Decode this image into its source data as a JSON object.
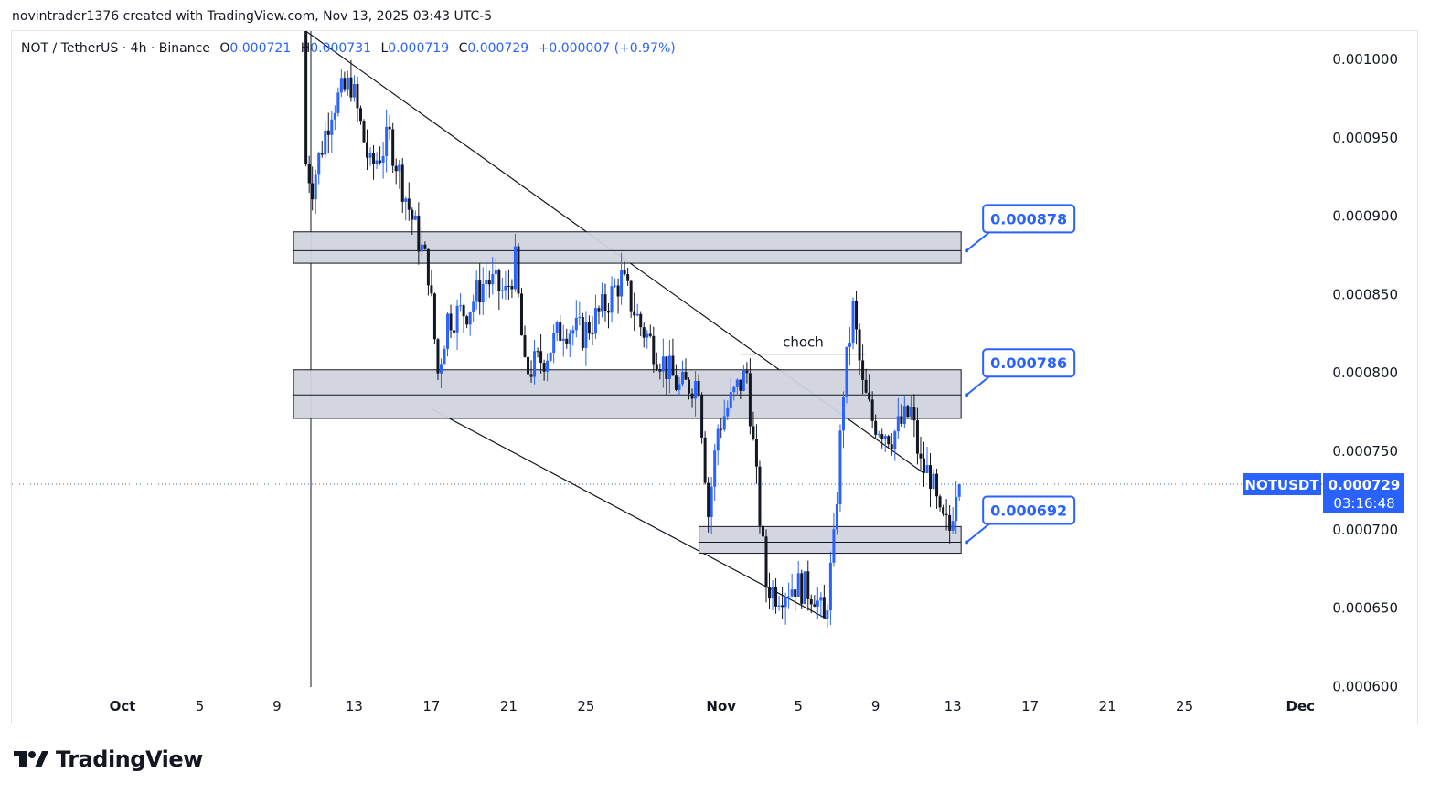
{
  "attribution": "novintrader1376 created with TradingView.com, Nov 13, 2025 03:43 UTC-5",
  "legend": {
    "symbol": "NOT / TetherUS · 4h · Binance",
    "open_key": "O",
    "open": "0.000721",
    "high_key": "H",
    "high": "0.000731",
    "low_key": "L",
    "low": "0.000719",
    "close_key": "C",
    "close": "0.000729",
    "change": "+0.000007 (+0.97%)"
  },
  "price_tag": {
    "symbol": "NOTUSDT",
    "price": "0.000729",
    "countdown": "03:16:48"
  },
  "brand": {
    "name": "TradingView"
  },
  "colors": {
    "up": "#2962ff",
    "down": "#131722",
    "zone_fill": "#d1d4dc",
    "zone_stroke": "#131722",
    "accent": "#2962ff",
    "trendline": "#131722",
    "current_price_line": "#2962ff"
  },
  "chart_data": {
    "type": "candlestick",
    "title": "NOT / TetherUS · 4h · Binance",
    "x_axis": {
      "type": "date",
      "ticks": [
        {
          "label": "Oct",
          "date": "2025-10-01"
        },
        {
          "label": "5",
          "date": "2025-10-05"
        },
        {
          "label": "9",
          "date": "2025-10-09"
        },
        {
          "label": "13",
          "date": "2025-10-13"
        },
        {
          "label": "17",
          "date": "2025-10-17"
        },
        {
          "label": "21",
          "date": "2025-10-21"
        },
        {
          "label": "25",
          "date": "2025-10-25"
        },
        {
          "label": "Nov",
          "date": "2025-11-01"
        },
        {
          "label": "5",
          "date": "2025-11-05"
        },
        {
          "label": "9",
          "date": "2025-11-09"
        },
        {
          "label": "13",
          "date": "2025-11-13"
        },
        {
          "label": "17",
          "date": "2025-11-17"
        },
        {
          "label": "21",
          "date": "2025-11-21"
        },
        {
          "label": "25",
          "date": "2025-11-25"
        },
        {
          "label": "Dec",
          "date": "2025-12-01"
        }
      ]
    },
    "y_axis": {
      "ticks": [
        "0.001000",
        "0.000950",
        "0.000900",
        "0.000850",
        "0.000800",
        "0.000750",
        "0.000700",
        "0.000650",
        "0.000600"
      ],
      "range": [
        0.000597,
        0.001018
      ]
    },
    "anchors": [
      {
        "date": "2025-10-10T12:00",
        "price": 0.00094
      },
      {
        "date": "2025-10-11T00:00",
        "price": 0.00092
      },
      {
        "date": "2025-10-12T00:00",
        "price": 0.00097
      },
      {
        "date": "2025-10-13T00:00",
        "price": 0.000985
      },
      {
        "date": "2025-10-14T00:00",
        "price": 0.00093
      },
      {
        "date": "2025-10-15T00:00",
        "price": 0.00095
      },
      {
        "date": "2025-10-16T00:00",
        "price": 0.000905
      },
      {
        "date": "2025-10-17T00:00",
        "price": 0.000865
      },
      {
        "date": "2025-10-17T12:00",
        "price": 0.0008
      },
      {
        "date": "2025-10-18T00:00",
        "price": 0.000835
      },
      {
        "date": "2025-10-19T00:00",
        "price": 0.00084
      },
      {
        "date": "2025-10-20T00:00",
        "price": 0.00086
      },
      {
        "date": "2025-10-21T00:00",
        "price": 0.00085
      },
      {
        "date": "2025-10-21T12:00",
        "price": 0.00087
      },
      {
        "date": "2025-10-22T00:00",
        "price": 0.0008
      },
      {
        "date": "2025-10-23T00:00",
        "price": 0.00081
      },
      {
        "date": "2025-10-24T00:00",
        "price": 0.00083
      },
      {
        "date": "2025-10-25T00:00",
        "price": 0.000825
      },
      {
        "date": "2025-10-26T00:00",
        "price": 0.00084
      },
      {
        "date": "2025-10-27T00:00",
        "price": 0.00086
      },
      {
        "date": "2025-10-28T00:00",
        "price": 0.00083
      },
      {
        "date": "2025-10-29T00:00",
        "price": 0.00081
      },
      {
        "date": "2025-10-30T00:00",
        "price": 0.00079
      },
      {
        "date": "2025-10-31T00:00",
        "price": 0.000795
      },
      {
        "date": "2025-10-31T12:00",
        "price": 0.00071
      },
      {
        "date": "2025-11-01T00:00",
        "price": 0.000765
      },
      {
        "date": "2025-11-02T00:00",
        "price": 0.00079
      },
      {
        "date": "2025-11-02T12:00",
        "price": 0.0008
      },
      {
        "date": "2025-11-03T00:00",
        "price": 0.00073
      },
      {
        "date": "2025-11-03T12:00",
        "price": 0.000665
      },
      {
        "date": "2025-11-04T00:00",
        "price": 0.00066
      },
      {
        "date": "2025-11-05T00:00",
        "price": 0.000665
      },
      {
        "date": "2025-11-06T00:00",
        "price": 0.00066
      },
      {
        "date": "2025-11-06T12:00",
        "price": 0.00064
      },
      {
        "date": "2025-11-07T00:00",
        "price": 0.00069
      },
      {
        "date": "2025-11-07T12:00",
        "price": 0.00079
      },
      {
        "date": "2025-11-08T00:00",
        "price": 0.00084
      },
      {
        "date": "2025-11-08T12:00",
        "price": 0.00079
      },
      {
        "date": "2025-11-09T00:00",
        "price": 0.00077
      },
      {
        "date": "2025-11-10T00:00",
        "price": 0.00076
      },
      {
        "date": "2025-11-11T00:00",
        "price": 0.000775
      },
      {
        "date": "2025-11-11T12:00",
        "price": 0.00074
      },
      {
        "date": "2025-11-12T00:00",
        "price": 0.000735
      },
      {
        "date": "2025-11-12T12:00",
        "price": 0.000705
      },
      {
        "date": "2025-11-13T00:00",
        "price": 0.0007
      },
      {
        "date": "2025-11-13T08:00",
        "price": 0.000729
      }
    ],
    "zones": [
      {
        "label": "0.000878",
        "top": 0.00089,
        "bottom": 0.00087,
        "mid": 0.000878,
        "start": "2025-10-10",
        "end": "2025-11-13"
      },
      {
        "label": "0.000786",
        "top": 0.000802,
        "bottom": 0.000771,
        "mid": 0.000786,
        "start": "2025-10-10",
        "end": "2025-11-13"
      },
      {
        "label": "0.000692",
        "top": 0.000702,
        "bottom": 0.000685,
        "mid": 0.000692,
        "start": "2025-10-31",
        "end": "2025-11-13"
      }
    ],
    "trendlines": [
      {
        "from": {
          "date": "2025-10-10T12:00",
          "price": 0.001018
        },
        "to": {
          "date": "2025-11-11T12:00",
          "price": 0.000736
        }
      },
      {
        "from": {
          "date": "2025-10-17T00:00",
          "price": 0.000777
        },
        "to": {
          "date": "2025-11-06T12:00",
          "price": 0.000643
        }
      }
    ],
    "annotation": {
      "text": "choch",
      "price": 0.000812,
      "start": "2025-11-02",
      "end": "2025-11-08T12:00"
    },
    "current_price": 0.000729
  }
}
